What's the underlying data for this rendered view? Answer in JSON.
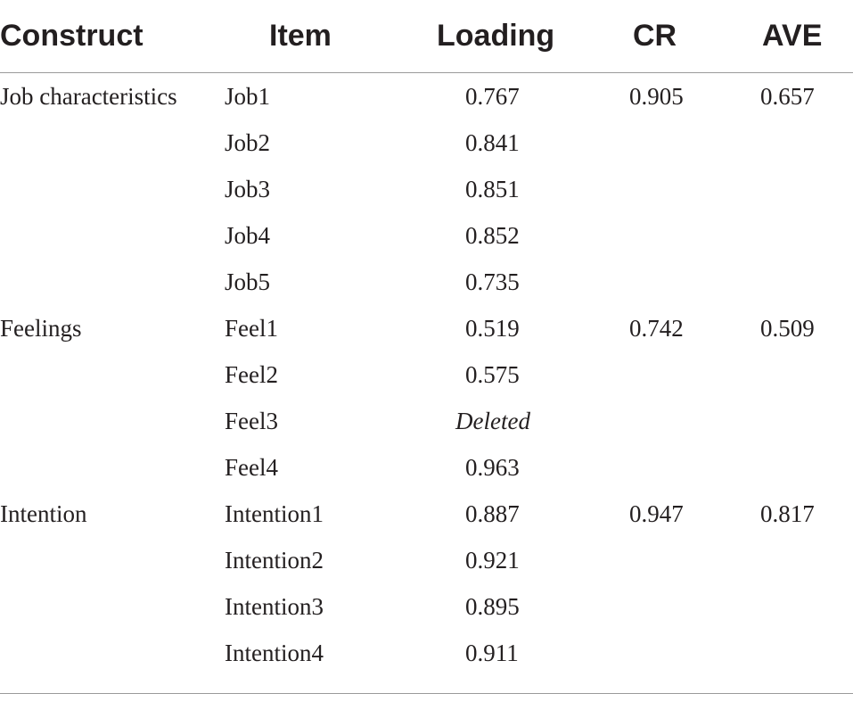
{
  "table": {
    "headers": {
      "construct": "Construct",
      "item": "Item",
      "loading": "Loading",
      "cr": "CR",
      "ave": "AVE"
    },
    "rows": [
      {
        "construct": "Job characteristics",
        "item": "Job1",
        "loading": "0.767",
        "cr": "0.905",
        "ave": "0.657"
      },
      {
        "construct": "",
        "item": "Job2",
        "loading": "0.841",
        "cr": "",
        "ave": ""
      },
      {
        "construct": "",
        "item": "Job3",
        "loading": "0.851",
        "cr": "",
        "ave": ""
      },
      {
        "construct": "",
        "item": "Job4",
        "loading": "0.852",
        "cr": "",
        "ave": ""
      },
      {
        "construct": "",
        "item": "Job5",
        "loading": "0.735",
        "cr": "",
        "ave": ""
      },
      {
        "construct": "Feelings",
        "item": "Feel1",
        "loading": "0.519",
        "cr": "0.742",
        "ave": "0.509"
      },
      {
        "construct": "",
        "item": "Feel2",
        "loading": "0.575",
        "cr": "",
        "ave": ""
      },
      {
        "construct": "",
        "item": "Feel3",
        "loading": "Deleted",
        "cr": "",
        "ave": ""
      },
      {
        "construct": "",
        "item": "Feel4",
        "loading": "0.963",
        "cr": "",
        "ave": ""
      },
      {
        "construct": "Intention",
        "item": "Intention1",
        "loading": "0.887",
        "cr": "0.947",
        "ave": "0.817"
      },
      {
        "construct": "",
        "item": "Intention2",
        "loading": "0.921",
        "cr": "",
        "ave": ""
      },
      {
        "construct": "",
        "item": "Intention3",
        "loading": "0.895",
        "cr": "",
        "ave": ""
      },
      {
        "construct": "",
        "item": "Intention4",
        "loading": "0.911",
        "cr": "",
        "ave": ""
      }
    ]
  }
}
